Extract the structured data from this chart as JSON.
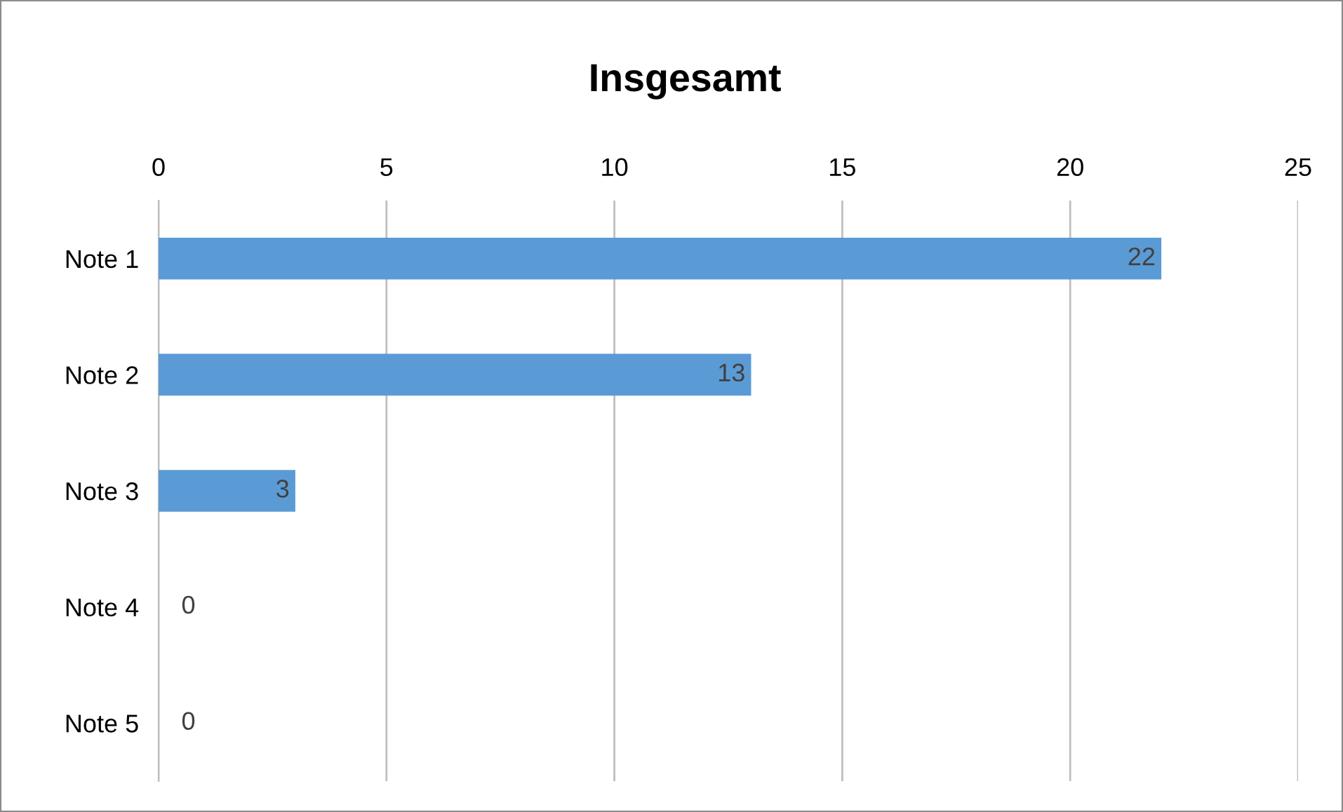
{
  "chart_data": {
    "type": "bar",
    "orientation": "horizontal",
    "title": "Insgesamt",
    "categories": [
      "Note 1",
      "Note 2",
      "Note 3",
      "Note 4",
      "Note 5"
    ],
    "values": [
      22,
      13,
      3,
      0,
      0
    ],
    "color": "#5b9bd5",
    "xlim": [
      0,
      25
    ],
    "xticks": [
      0,
      5,
      10,
      15,
      20,
      25
    ],
    "grid": "x",
    "data_labels": true,
    "legend": false
  }
}
